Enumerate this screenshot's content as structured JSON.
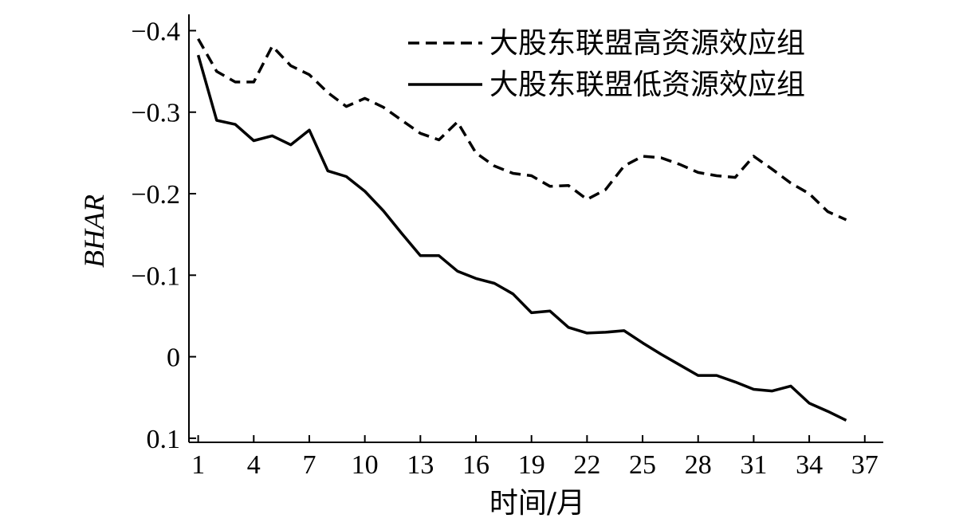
{
  "chart_data": {
    "type": "line",
    "title": "",
    "xlabel": "时间/月",
    "ylabel": "BHAR",
    "x_ticks": [
      "1",
      "4",
      "7",
      "10",
      "13",
      "16",
      "19",
      "22",
      "25",
      "28",
      "31",
      "34",
      "37"
    ],
    "y_ticks": [
      "-0.4",
      "-0.3",
      "-0.2",
      "-0.1",
      "0",
      "0.1"
    ],
    "xlim": [
      0.5,
      38
    ],
    "ylim": [
      -0.42,
      0.105
    ],
    "y_axis_inverted": true,
    "grid": false,
    "legend_position": "top-right",
    "x": [
      1,
      2,
      3,
      4,
      5,
      6,
      7,
      8,
      9,
      10,
      11,
      12,
      13,
      14,
      15,
      16,
      17,
      18,
      19,
      20,
      21,
      22,
      23,
      24,
      25,
      26,
      27,
      28,
      29,
      30,
      31,
      32,
      33,
      34,
      35,
      36
    ],
    "series": [
      {
        "name": "大股东联盟高资源效应组",
        "style": "dashed",
        "values": [
          -0.39,
          -0.35,
          -0.337,
          -0.337,
          -0.381,
          -0.357,
          -0.346,
          -0.324,
          -0.307,
          -0.317,
          -0.306,
          -0.29,
          -0.274,
          -0.266,
          -0.288,
          -0.25,
          -0.234,
          -0.225,
          -0.222,
          -0.209,
          -0.21,
          -0.193,
          -0.205,
          -0.234,
          -0.246,
          -0.244,
          -0.236,
          -0.226,
          -0.222,
          -0.22,
          -0.246,
          -0.23,
          -0.213,
          -0.2,
          -0.178,
          -0.168
        ]
      },
      {
        "name": "大股东联盟低资源效应组",
        "style": "solid",
        "values": [
          -0.37,
          -0.29,
          -0.285,
          -0.265,
          -0.271,
          -0.26,
          -0.278,
          -0.228,
          -0.221,
          -0.203,
          -0.179,
          -0.151,
          -0.124,
          -0.124,
          -0.105,
          -0.096,
          -0.09,
          -0.077,
          -0.054,
          -0.056,
          -0.036,
          -0.029,
          -0.03,
          -0.032,
          -0.017,
          -0.003,
          0.01,
          0.023,
          0.023,
          0.031,
          0.04,
          0.042,
          0.036,
          0.057,
          0.067,
          0.078
        ]
      }
    ]
  }
}
